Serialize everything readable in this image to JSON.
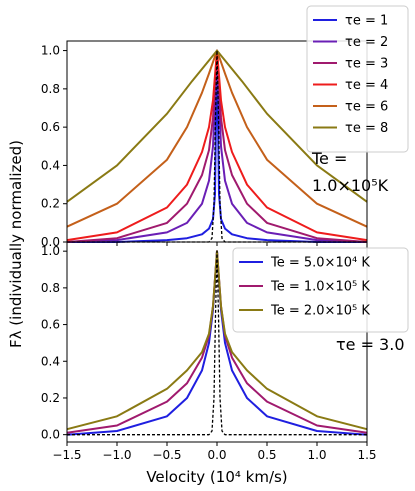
{
  "chart_data": {
    "type": "line",
    "xlabel": "Velocity (10⁴ km/s)",
    "ylabel": "Fλ (individually normalized)",
    "xlim": [
      -1.5,
      1.5
    ],
    "x_ticks": [
      "−1.5",
      "−1.0",
      "−0.5",
      "0.0",
      "0.5",
      "1.0",
      "1.5"
    ],
    "grid": false,
    "panels": [
      {
        "name": "top",
        "ylim": [
          0,
          1.05
        ],
        "y_ticks": [
          "0.0",
          "0.2",
          "0.4",
          "0.6",
          "0.8",
          "1.0"
        ],
        "annotation": "Te = 1.0×10⁵K",
        "legend_location": "upper-right",
        "series": [
          {
            "name": "τe = 1",
            "color": "#1f1fe0",
            "x": [
              -1.5,
              -1.0,
              -0.5,
              -0.3,
              -0.15,
              -0.08,
              -0.04,
              -0.02,
              0,
              0.02,
              0.04,
              0.08,
              0.15,
              0.3,
              0.5,
              1.0,
              1.5
            ],
            "values": [
              0.0,
              0.0,
              0.01,
              0.02,
              0.04,
              0.07,
              0.12,
              0.25,
              1.0,
              0.25,
              0.12,
              0.07,
              0.04,
              0.02,
              0.01,
              0.0,
              0.0
            ]
          },
          {
            "name": "τe = 2",
            "color": "#6a1fb5",
            "x": [
              -1.5,
              -1.0,
              -0.5,
              -0.3,
              -0.15,
              -0.08,
              -0.04,
              0,
              0.04,
              0.08,
              0.15,
              0.3,
              0.5,
              1.0,
              1.5
            ],
            "values": [
              0.0,
              0.01,
              0.05,
              0.1,
              0.2,
              0.32,
              0.5,
              1.0,
              0.5,
              0.32,
              0.2,
              0.1,
              0.05,
              0.01,
              0.0
            ]
          },
          {
            "name": "τe = 3",
            "color": "#a01a6e",
            "x": [
              -1.5,
              -1.0,
              -0.5,
              -0.3,
              -0.15,
              -0.08,
              -0.04,
              0,
              0.04,
              0.08,
              0.15,
              0.3,
              0.5,
              1.0,
              1.5
            ],
            "values": [
              0.0,
              0.02,
              0.1,
              0.2,
              0.35,
              0.48,
              0.65,
              1.0,
              0.65,
              0.48,
              0.35,
              0.2,
              0.1,
              0.02,
              0.0
            ]
          },
          {
            "name": "τe = 4",
            "color": "#ee1c1c",
            "x": [
              -1.5,
              -1.0,
              -0.5,
              -0.3,
              -0.15,
              -0.08,
              -0.04,
              0,
              0.04,
              0.08,
              0.15,
              0.3,
              0.5,
              1.0,
              1.5
            ],
            "values": [
              0.01,
              0.05,
              0.18,
              0.3,
              0.47,
              0.6,
              0.74,
              1.0,
              0.74,
              0.6,
              0.47,
              0.3,
              0.18,
              0.05,
              0.01
            ]
          },
          {
            "name": "τe = 6",
            "color": "#c4601a",
            "x": [
              -1.5,
              -1.0,
              -0.5,
              -0.3,
              -0.15,
              -0.08,
              0,
              0.08,
              0.15,
              0.3,
              0.5,
              1.0,
              1.5
            ],
            "values": [
              0.08,
              0.2,
              0.43,
              0.6,
              0.78,
              0.88,
              1.0,
              0.88,
              0.78,
              0.6,
              0.43,
              0.2,
              0.08
            ]
          },
          {
            "name": "τe = 8",
            "color": "#8a7a14",
            "x": [
              -1.5,
              -1.0,
              -0.5,
              -0.25,
              0,
              0.25,
              0.5,
              1.0,
              1.5
            ],
            "values": [
              0.21,
              0.4,
              0.67,
              0.84,
              1.0,
              0.84,
              0.67,
              0.4,
              0.21
            ]
          },
          {
            "name": "",
            "color": "#000000",
            "dashed": true,
            "x": [
              -1.5,
              -0.08,
              -0.05,
              -0.03,
              -0.015,
              0,
              0.015,
              0.03,
              0.05,
              0.08,
              1.5
            ],
            "values": [
              0.0,
              0.0,
              0.02,
              0.2,
              0.65,
              1.0,
              0.65,
              0.2,
              0.02,
              0.0,
              0.0
            ]
          }
        ]
      },
      {
        "name": "bottom",
        "ylim": [
          -0.04,
          1.05
        ],
        "y_ticks": [
          "0.0",
          "0.2",
          "0.4",
          "0.6",
          "0.8",
          "1.0"
        ],
        "annotation": "τe = 3.0",
        "legend_location": "upper-right",
        "series": [
          {
            "name": "Te = 5.0×10⁴ K",
            "color": "#1f1fe0",
            "x": [
              -1.5,
              -1.0,
              -0.5,
              -0.3,
              -0.15,
              -0.08,
              -0.04,
              0,
              0.04,
              0.08,
              0.15,
              0.3,
              0.5,
              1.0,
              1.5
            ],
            "values": [
              0.0,
              0.02,
              0.1,
              0.2,
              0.35,
              0.5,
              0.68,
              1.0,
              0.68,
              0.5,
              0.35,
              0.2,
              0.1,
              0.02,
              0.0
            ]
          },
          {
            "name": "Te = 1.0×10⁵ K",
            "color": "#a01a6e",
            "x": [
              -1.5,
              -1.0,
              -0.5,
              -0.3,
              -0.15,
              -0.08,
              -0.04,
              0,
              0.04,
              0.08,
              0.15,
              0.3,
              0.5,
              1.0,
              1.5
            ],
            "values": [
              0.01,
              0.05,
              0.18,
              0.28,
              0.42,
              0.54,
              0.7,
              1.0,
              0.7,
              0.54,
              0.42,
              0.28,
              0.18,
              0.05,
              0.01
            ]
          },
          {
            "name": "Te = 2.0×10⁵ K",
            "color": "#8a7a14",
            "x": [
              -1.5,
              -1.0,
              -0.5,
              -0.3,
              -0.15,
              -0.08,
              -0.04,
              0,
              0.04,
              0.08,
              0.15,
              0.3,
              0.5,
              1.0,
              1.5
            ],
            "values": [
              0.03,
              0.1,
              0.25,
              0.35,
              0.45,
              0.55,
              0.7,
              1.0,
              0.7,
              0.55,
              0.45,
              0.35,
              0.25,
              0.1,
              0.03
            ]
          },
          {
            "name": "",
            "color": "#000000",
            "dashed": true,
            "x": [
              -1.5,
              -0.08,
              -0.05,
              -0.03,
              -0.015,
              0,
              0.015,
              0.03,
              0.05,
              0.08,
              1.5
            ],
            "values": [
              0.0,
              0.0,
              0.02,
              0.2,
              0.65,
              1.0,
              0.65,
              0.2,
              0.02,
              0.0,
              0.0
            ]
          }
        ]
      }
    ]
  }
}
